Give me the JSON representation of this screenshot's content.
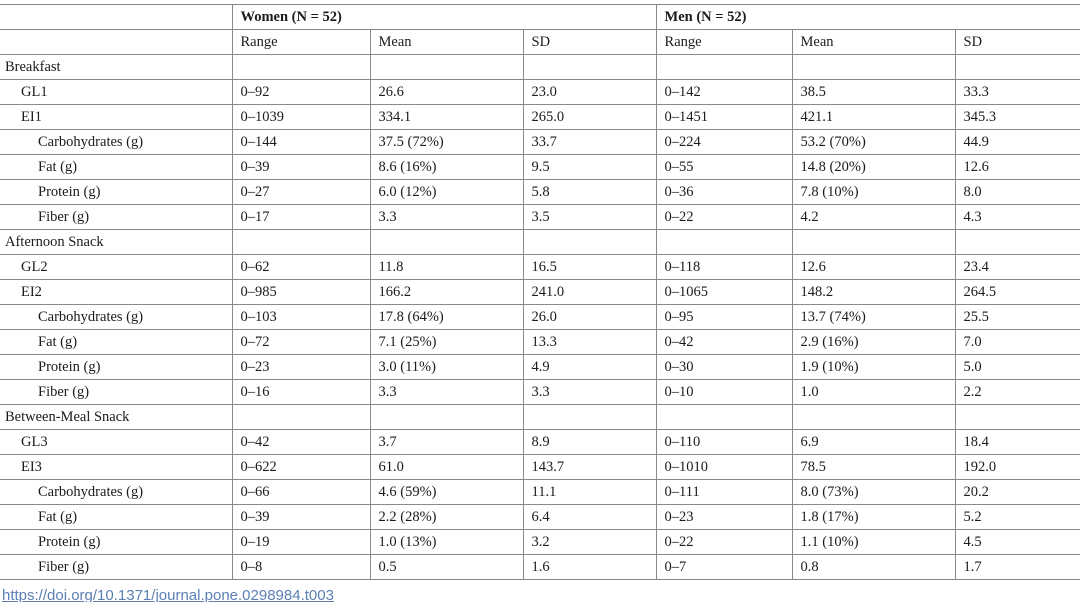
{
  "table": {
    "group_headers": [
      {
        "label": "Women (N = 52)"
      },
      {
        "label": "Men (N = 52)"
      }
    ],
    "stat_headers": [
      "Range",
      "Mean",
      "SD",
      "Range",
      "Mean",
      "SD"
    ],
    "rows": [
      {
        "type": "section",
        "indent": 0,
        "label": "Breakfast"
      },
      {
        "type": "data",
        "indent": 1,
        "label": "GL1",
        "values": [
          "0–92",
          "26.6",
          "23.0",
          "0–142",
          "38.5",
          "33.3"
        ]
      },
      {
        "type": "data",
        "indent": 1,
        "label": "EI1",
        "values": [
          "0–1039",
          "334.1",
          "265.0",
          "0–1451",
          "421.1",
          "345.3"
        ]
      },
      {
        "type": "data",
        "indent": 2,
        "label": "Carbohydrates (g)",
        "values": [
          "0–144",
          "37.5 (72%)",
          "33.7",
          "0–224",
          "53.2 (70%)",
          "44.9"
        ]
      },
      {
        "type": "data",
        "indent": 2,
        "label": "Fat (g)",
        "values": [
          "0–39",
          "8.6 (16%)",
          "9.5",
          "0–55",
          "14.8 (20%)",
          "12.6"
        ]
      },
      {
        "type": "data",
        "indent": 2,
        "label": "Protein (g)",
        "values": [
          "0–27",
          "6.0 (12%)",
          "5.8",
          "0–36",
          "7.8 (10%)",
          "8.0"
        ]
      },
      {
        "type": "data",
        "indent": 2,
        "label": "Fiber (g)",
        "values": [
          "0–17",
          "3.3",
          "3.5",
          "0–22",
          "4.2",
          "4.3"
        ]
      },
      {
        "type": "section",
        "indent": 0,
        "label": "Afternoon Snack"
      },
      {
        "type": "data",
        "indent": 1,
        "label": "GL2",
        "values": [
          "0–62",
          "11.8",
          "16.5",
          "0–118",
          "12.6",
          "23.4"
        ]
      },
      {
        "type": "data",
        "indent": 1,
        "label": "EI2",
        "values": [
          "0–985",
          "166.2",
          "241.0",
          "0–1065",
          "148.2",
          "264.5"
        ]
      },
      {
        "type": "data",
        "indent": 2,
        "label": "Carbohydrates (g)",
        "values": [
          "0–103",
          "17.8 (64%)",
          "26.0",
          "0–95",
          "13.7 (74%)",
          "25.5"
        ]
      },
      {
        "type": "data",
        "indent": 2,
        "label": "Fat (g)",
        "values": [
          "0–72",
          "7.1 (25%)",
          "13.3",
          "0–42",
          "2.9 (16%)",
          "7.0"
        ]
      },
      {
        "type": "data",
        "indent": 2,
        "label": "Protein (g)",
        "values": [
          "0–23",
          "3.0 (11%)",
          "4.9",
          "0–30",
          "1.9 (10%)",
          "5.0"
        ]
      },
      {
        "type": "data",
        "indent": 2,
        "label": "Fiber (g)",
        "values": [
          "0–16",
          "3.3",
          "3.3",
          "0–10",
          "1.0",
          "2.2"
        ]
      },
      {
        "type": "section",
        "indent": 0,
        "label": "Between-Meal Snack"
      },
      {
        "type": "data",
        "indent": 1,
        "label": "GL3",
        "values": [
          "0–42",
          "3.7",
          "8.9",
          "0–110",
          "6.9",
          "18.4"
        ]
      },
      {
        "type": "data",
        "indent": 1,
        "label": "EI3",
        "values": [
          "0–622",
          "61.0",
          "143.7",
          "0–1010",
          "78.5",
          "192.0"
        ]
      },
      {
        "type": "data",
        "indent": 2,
        "label": "Carbohydrates (g)",
        "values": [
          "0–66",
          "4.6 (59%)",
          "11.1",
          "0–111",
          "8.0 (73%)",
          "20.2"
        ]
      },
      {
        "type": "data",
        "indent": 2,
        "label": "Fat (g)",
        "values": [
          "0–39",
          "2.2 (28%)",
          "6.4",
          "0–23",
          "1.8 (17%)",
          "5.2"
        ]
      },
      {
        "type": "data",
        "indent": 2,
        "label": "Protein (g)",
        "values": [
          "0–19",
          "1.0 (13%)",
          "3.2",
          "0–22",
          "1.1 (10%)",
          "4.5"
        ]
      },
      {
        "type": "data",
        "indent": 2,
        "label": "Fiber (g)",
        "values": [
          "0–8",
          "0.5",
          "1.6",
          "0–7",
          "0.8",
          "1.7"
        ]
      }
    ]
  },
  "footer": {
    "doi": "https://doi.org/10.1371/journal.pone.0298984.t003"
  },
  "colors": {
    "border": "#8a8a8a",
    "text": "#1b1b1b",
    "link": "#5b7fb5"
  }
}
